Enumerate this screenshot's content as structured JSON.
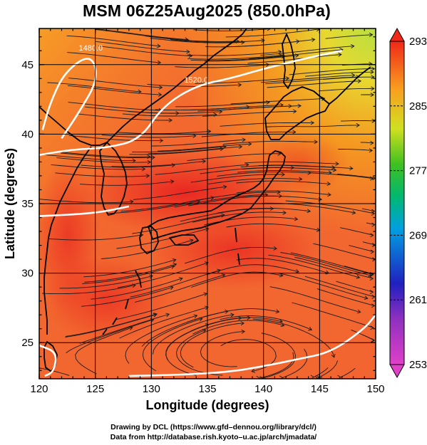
{
  "title": "MSM 06Z25Aug2025 (850.0hPa)",
  "chart_data": {
    "type": "heatmap",
    "title": "MSM 06Z25Aug2025 (850.0hPa)",
    "xlabel": "Longitude (degrees)",
    "ylabel": "Latitude  (degrees)",
    "xlim": [
      120,
      150
    ],
    "ylim": [
      22.4,
      47.6
    ],
    "x_ticks": [
      "120",
      "125",
      "130",
      "135",
      "140",
      "145",
      "150"
    ],
    "y_ticks": [
      "25",
      "30",
      "35",
      "40",
      "45"
    ],
    "colorbar": {
      "min": 253,
      "max": 293,
      "ticks": [
        "293",
        "285",
        "277",
        "269",
        "261",
        "253"
      ],
      "colors": [
        "#e040c8",
        "#3030c0",
        "#00a0d0",
        "#00b060",
        "#60c020",
        "#d8e020",
        "#f8a020",
        "#f06030",
        "#f02818"
      ]
    },
    "contours": [
      {
        "label": "1480.0",
        "points": [
          [
            122.0,
            39.7
          ],
          [
            123.5,
            41.5
          ],
          [
            125.3,
            44.0
          ],
          [
            124.6,
            45.8
          ],
          [
            122.3,
            44.5
          ],
          [
            121.0,
            42.3
          ],
          [
            120.3,
            40.3
          ]
        ]
      },
      {
        "label": "1520.0",
        "points": [
          [
            120.0,
            38.5
          ],
          [
            123.0,
            38.9
          ],
          [
            126.0,
            39.0
          ],
          [
            129.0,
            39.6
          ],
          [
            131.0,
            42.0
          ],
          [
            134.0,
            43.5
          ],
          [
            137.0,
            44.0
          ],
          [
            140.0,
            44.7
          ],
          [
            144.0,
            45.5
          ],
          [
            147.0,
            46.0
          ]
        ]
      },
      {
        "label": "",
        "points": [
          [
            120.0,
            34.1
          ],
          [
            125.0,
            34.3
          ],
          [
            128.0,
            34.8
          ]
        ]
      },
      {
        "label": "",
        "points": [
          [
            120.0,
            24.8
          ],
          [
            121.6,
            24.3
          ],
          [
            121.3,
            22.9
          ],
          [
            120.5,
            22.6
          ]
        ]
      },
      {
        "label": "",
        "points": [
          [
            128.0,
            22.6
          ],
          [
            133.0,
            22.7
          ],
          [
            137.0,
            22.9
          ],
          [
            140.0,
            23.3
          ],
          [
            143.0,
            23.8
          ],
          [
            146.0,
            24.3
          ],
          [
            149.0,
            26.0
          ],
          [
            150.0,
            27.0
          ]
        ]
      }
    ]
  },
  "credits": {
    "line1": "Drawing by DCL (https://www.gfd–dennou.org/library/dcl/)",
    "line2": "Data from http://database.rish.kyoto–u.ac.jp/arch/jmadata/"
  }
}
